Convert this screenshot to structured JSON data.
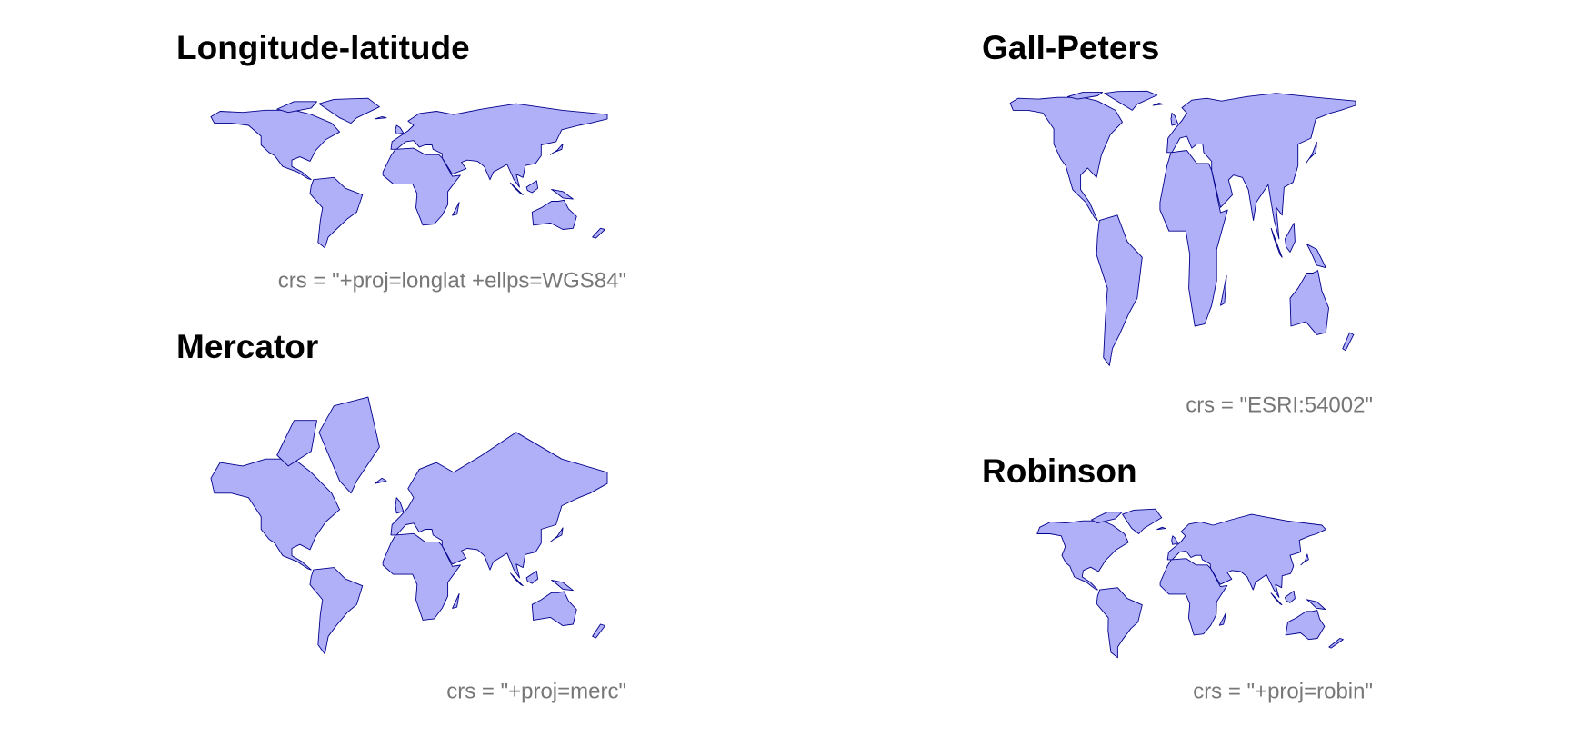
{
  "panels": [
    {
      "title": "Longitude-latitude",
      "caption": "crs = \"+proj=longlat +ellps=WGS84\""
    },
    {
      "title": "Gall-Peters",
      "caption": "crs = \"ESRI:54002\""
    },
    {
      "title": "Mercator",
      "caption": "crs = \"+proj=merc\""
    },
    {
      "title": "Robinson",
      "caption": "crs = \"+proj=robin\""
    }
  ]
}
